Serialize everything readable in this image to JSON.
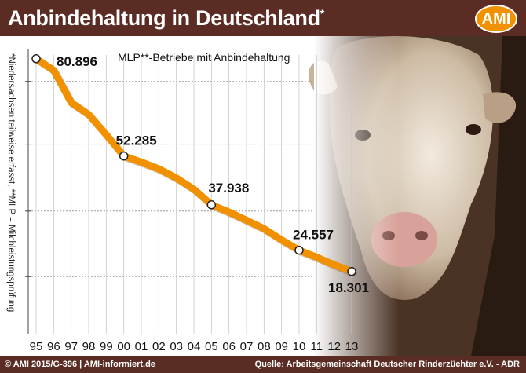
{
  "header": {
    "title": "Anbindehaltung in Deutschland",
    "title_mark": "*",
    "logo": "AMI"
  },
  "footer": {
    "left": "© AMI 2015/G-396 | AMI-informiert.de",
    "right": "Quelle:  Arbeitsgemeinschaft Deutscher Rinderzüchter e.V. - ADR"
  },
  "side_note": "*Niedersachsen teilweise erfasst, **MLP = Milchleistungsprüfung",
  "colors": {
    "header_bg": "#5a2c23",
    "line": "#f29100",
    "accent": "#f29100"
  },
  "chart_data": {
    "type": "line",
    "title": "MLP**-Betriebe mit Anbindehaltung",
    "categories": [
      "95",
      "96",
      "97",
      "98",
      "99",
      "00",
      "01",
      "02",
      "03",
      "04",
      "05",
      "06",
      "07",
      "08",
      "09",
      "10",
      "11",
      "12",
      "13"
    ],
    "values": [
      80896,
      77500,
      68000,
      64500,
      58500,
      52285,
      50500,
      48500,
      45800,
      42500,
      37938,
      35800,
      33400,
      30900,
      27600,
      24557,
      22500,
      20300,
      18301
    ],
    "labeled_points": [
      {
        "index": 0,
        "label": "80.896"
      },
      {
        "index": 5,
        "label": "52.285"
      },
      {
        "index": 10,
        "label": "37.938"
      },
      {
        "index": 15,
        "label": "24.557"
      },
      {
        "index": 18,
        "label": "18.301"
      }
    ],
    "legend": "MLP**-Betriebe mit Anbindehaltung",
    "ylim": [
      0,
      82000
    ],
    "xlabel": "",
    "ylabel": ""
  }
}
